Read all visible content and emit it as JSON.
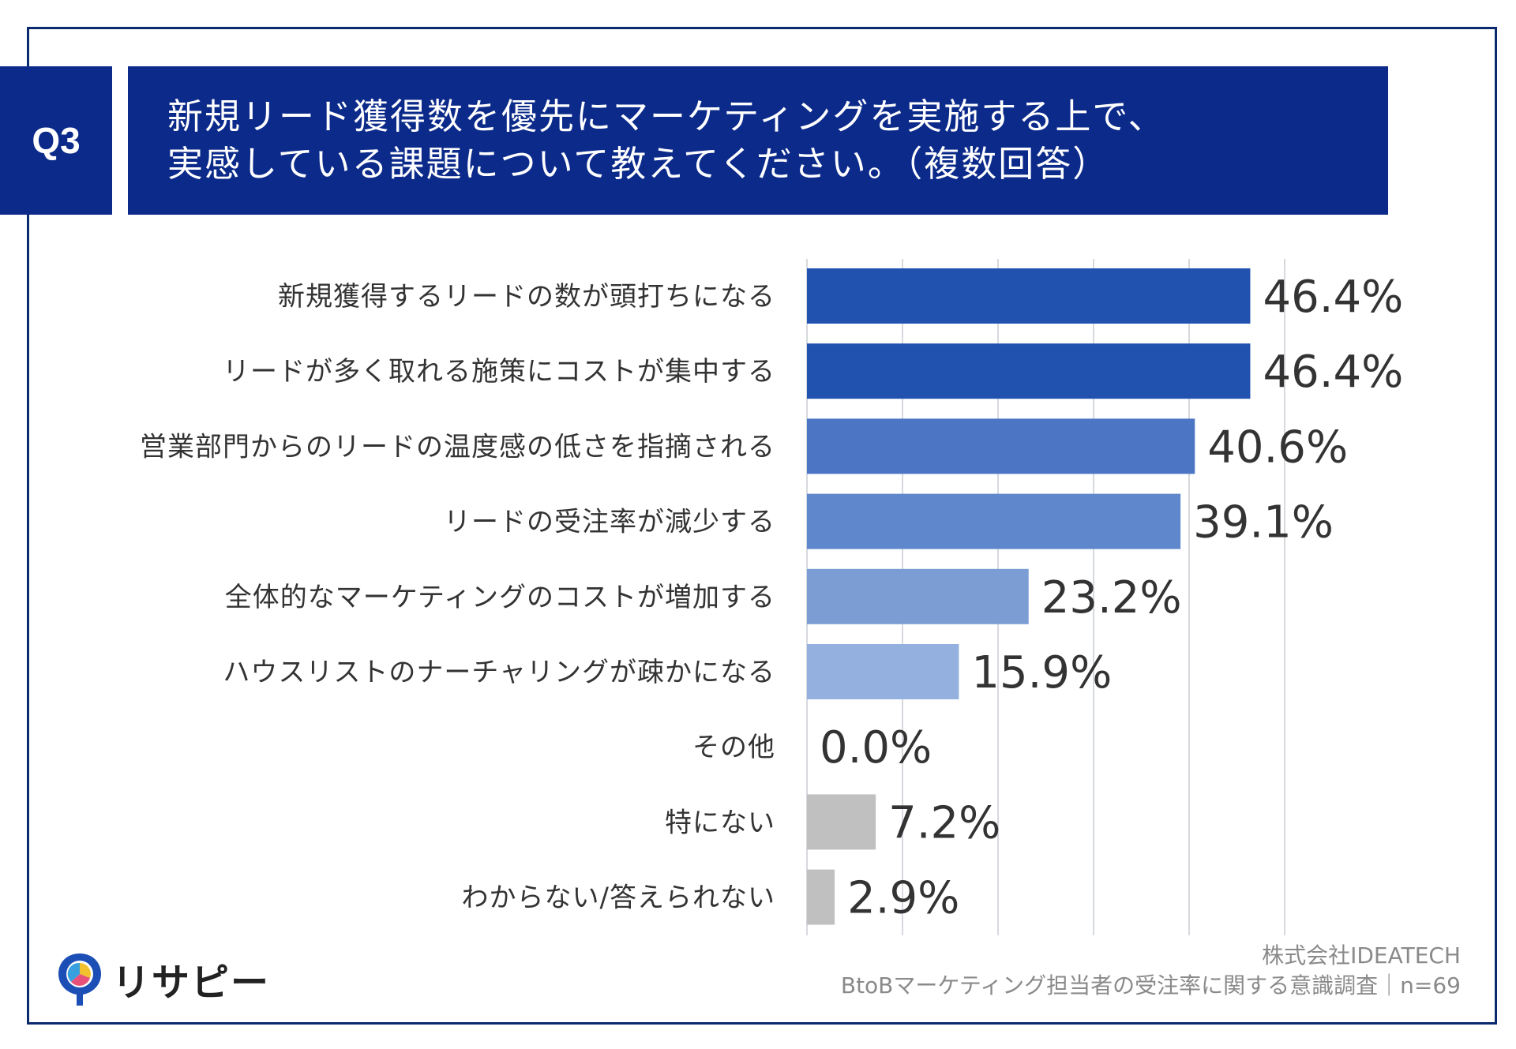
{
  "question": {
    "badge": "Q3",
    "title_line1": "新規リード獲得数を優先にマーケティングを実施する上で、",
    "title_line2": "実感している課題について教えてください。（複数回答）"
  },
  "colors": {
    "header_bg": "#0b2a8a",
    "frame": "#0b2a6d",
    "grid": "#d6d9de",
    "gray_bar": "#c0c0c0"
  },
  "chart_data": {
    "type": "bar",
    "orientation": "horizontal",
    "categories": [
      "新規獲得するリードの数が頭打ちになる",
      "リードが多く取れる施策にコストが集中する",
      "営業部門からのリードの温度感の低さを指摘される",
      "リードの受注率が減少する",
      "全体的なマーケティングのコストが増加する",
      "ハウスリストのナーチャリングが疎かになる",
      "その他",
      "特にない",
      "わからない/答えられない"
    ],
    "values": [
      46.4,
      46.4,
      40.6,
      39.1,
      23.2,
      15.9,
      0.0,
      7.2,
      2.9
    ],
    "value_labels": [
      "46.4%",
      "46.4%",
      "40.6%",
      "39.1%",
      "23.2%",
      "15.9%",
      "0.0%",
      "7.2%",
      "2.9%"
    ],
    "bar_colors": [
      "#2152b0",
      "#2152b0",
      "#4c76c4",
      "#5f87cb",
      "#7c9dd3",
      "#93b0de",
      "#c0c0c0",
      "#c0c0c0",
      "#c0c0c0"
    ],
    "xlim": [
      0,
      60
    ],
    "grid": true,
    "legend": "none"
  },
  "footer": {
    "logo_text": "リサピー",
    "company": "株式会社IDEATECH",
    "survey": "BtoBマーケティング担当者の受注率に関する意識調査｜n=69"
  }
}
